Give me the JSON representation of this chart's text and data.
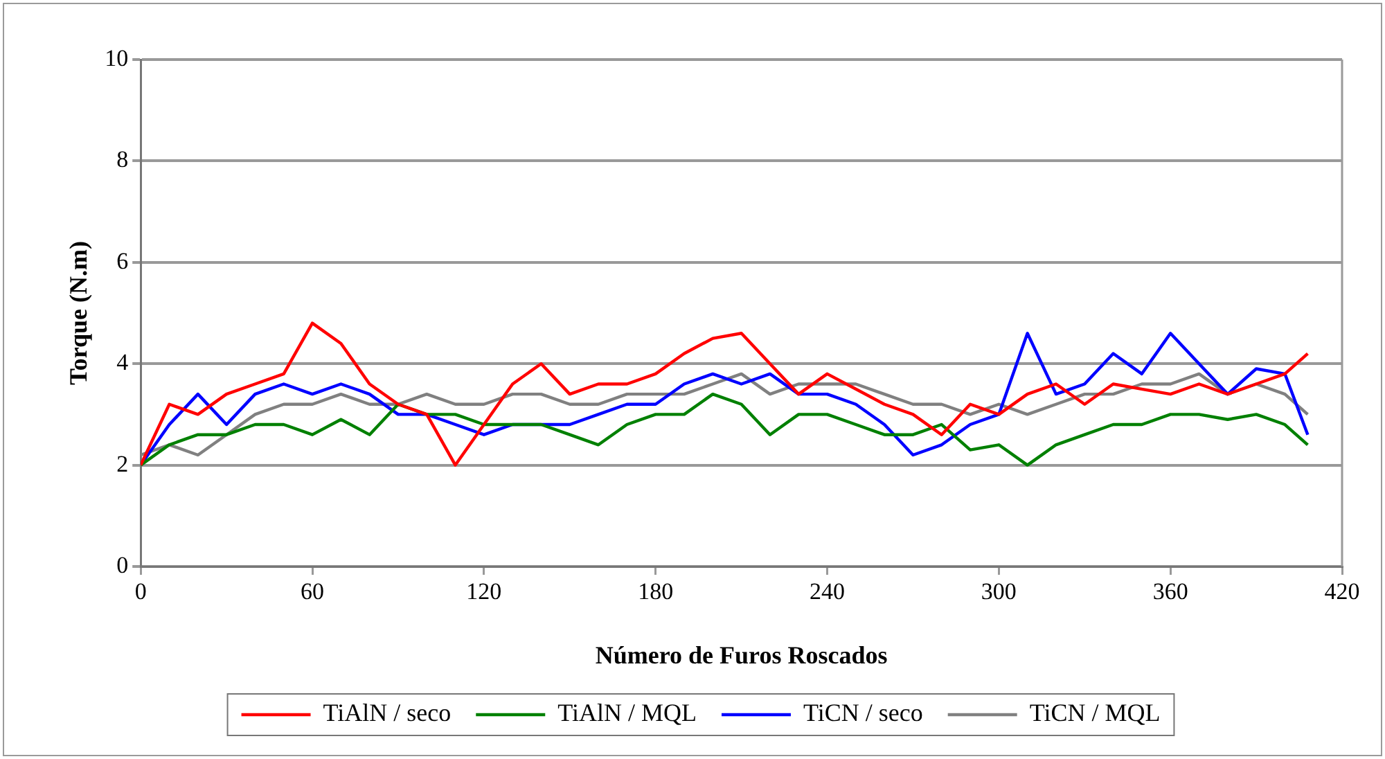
{
  "chart_data": {
    "type": "line",
    "xlabel": "Número de Furos Roscados",
    "ylabel": "Torque (N.m)",
    "x": [
      0,
      10,
      20,
      30,
      40,
      50,
      60,
      70,
      80,
      90,
      100,
      110,
      120,
      130,
      140,
      150,
      160,
      170,
      180,
      190,
      200,
      210,
      220,
      230,
      240,
      250,
      260,
      270,
      280,
      290,
      300,
      310,
      320,
      330,
      340,
      350,
      360,
      370,
      380,
      390,
      400,
      408
    ],
    "series": [
      {
        "name": "TiAlN / seco",
        "color": "#ff0000",
        "values": [
          2.0,
          3.2,
          3.0,
          3.4,
          3.6,
          3.8,
          4.8,
          4.4,
          3.6,
          3.2,
          3.0,
          2.0,
          2.8,
          3.6,
          4.0,
          3.4,
          3.6,
          3.6,
          3.8,
          4.2,
          4.5,
          4.6,
          4.0,
          3.4,
          3.8,
          3.5,
          3.2,
          3.0,
          2.6,
          3.2,
          3.0,
          3.4,
          3.6,
          3.2,
          3.6,
          3.5,
          3.4,
          3.6,
          3.4,
          3.6,
          3.8,
          4.2
        ]
      },
      {
        "name": "TiAlN / MQL",
        "color": "#008000",
        "values": [
          2.0,
          2.4,
          2.6,
          2.6,
          2.8,
          2.8,
          2.6,
          2.9,
          2.6,
          3.2,
          3.0,
          3.0,
          2.8,
          2.8,
          2.8,
          2.6,
          2.4,
          2.8,
          3.0,
          3.0,
          3.4,
          3.2,
          2.6,
          3.0,
          3.0,
          2.8,
          2.6,
          2.6,
          2.8,
          2.3,
          2.4,
          2.0,
          2.4,
          2.6,
          2.8,
          2.8,
          3.0,
          3.0,
          2.9,
          3.0,
          2.8,
          2.4
        ]
      },
      {
        "name": "TiCN / seco",
        "color": "#0000ff",
        "values": [
          2.0,
          2.8,
          3.4,
          2.8,
          3.4,
          3.6,
          3.4,
          3.6,
          3.4,
          3.0,
          3.0,
          2.8,
          2.6,
          2.8,
          2.8,
          2.8,
          3.0,
          3.2,
          3.2,
          3.6,
          3.8,
          3.6,
          3.8,
          3.4,
          3.4,
          3.2,
          2.8,
          2.2,
          2.4,
          2.8,
          3.0,
          4.6,
          3.4,
          3.6,
          4.2,
          3.8,
          4.6,
          4.0,
          3.4,
          3.9,
          3.8,
          2.6
        ]
      },
      {
        "name": "TiCN / MQL",
        "color": "#808080",
        "values": [
          2.2,
          2.4,
          2.2,
          2.6,
          3.0,
          3.2,
          3.2,
          3.4,
          3.2,
          3.2,
          3.4,
          3.2,
          3.2,
          3.4,
          3.4,
          3.2,
          3.2,
          3.4,
          3.4,
          3.4,
          3.6,
          3.8,
          3.4,
          3.6,
          3.6,
          3.6,
          3.4,
          3.2,
          3.2,
          3.0,
          3.2,
          3.0,
          3.2,
          3.4,
          3.4,
          3.6,
          3.6,
          3.8,
          3.4,
          3.6,
          3.4,
          3.0
        ]
      }
    ],
    "xlim": [
      0,
      420
    ],
    "xticks": [
      0,
      60,
      120,
      180,
      240,
      300,
      360,
      420
    ],
    "ylim": [
      0,
      10
    ],
    "yticks": [
      0,
      2,
      4,
      6,
      8,
      10
    ],
    "grid": "y",
    "legend": "bottom",
    "marker": "none",
    "line_style": "solid"
  }
}
